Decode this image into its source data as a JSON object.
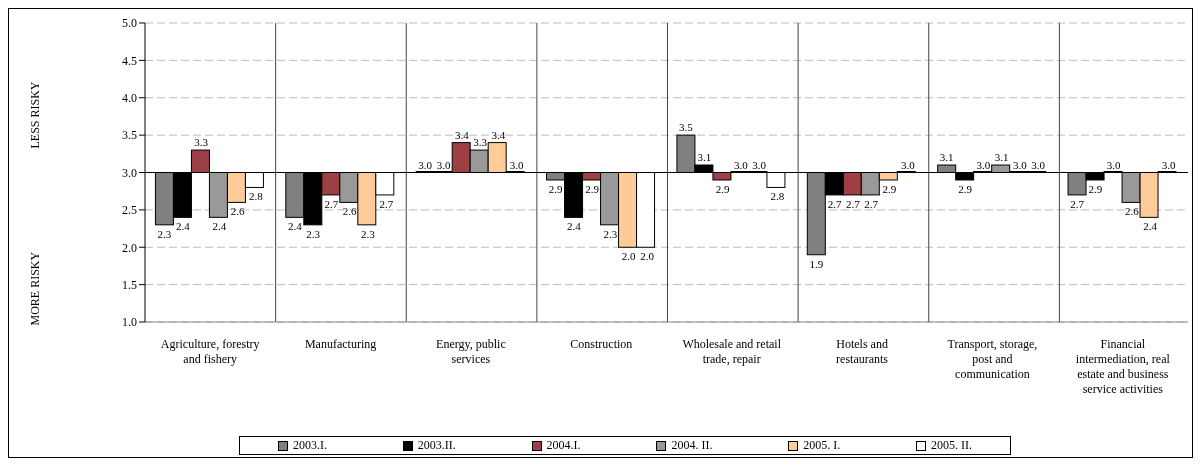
{
  "chart_data": {
    "type": "bar",
    "categories": [
      "Agriculture, forestry and fishery",
      "Manufacturing",
      "Energy, public services",
      "Construction",
      "Wholesale and retail trade, repair",
      "Hotels and restaurants",
      "Transport, storage, post and communication",
      "Financial intermediation, real estate and business service activities"
    ],
    "series": [
      {
        "name": "2003.I.",
        "color": "#808080",
        "base": [
          3.0,
          3.0,
          3.0,
          3.0,
          3.0,
          3.0,
          3.0,
          3.0
        ],
        "values": [
          -0.7,
          -0.6,
          0,
          -0.1,
          0.5,
          -1.1,
          0.1,
          -0.3
        ],
        "value_labels": [
          "2.3",
          "2.4",
          "3.0",
          "2.9",
          "3.5",
          "1.9",
          "3.1",
          "2.7"
        ]
      },
      {
        "name": "2003.II.",
        "color": "#000000",
        "base": [
          3.0,
          3.0,
          3.0,
          3.0,
          3.0,
          3.0,
          3.0,
          3.0
        ],
        "values": [
          -0.6,
          -0.7,
          0,
          -0.6,
          0.1,
          -0.3,
          -0.1,
          -0.1
        ],
        "value_labels": [
          "2.4",
          "2.3",
          "3.0",
          "2.4",
          "3.1",
          "2.7",
          "2.9",
          "2.9"
        ]
      },
      {
        "name": "2004.I.",
        "color": "#9e3f45",
        "base": [
          3.0,
          3.0,
          3.0,
          3.0,
          3.0,
          3.0,
          3.0,
          3.0
        ],
        "values": [
          0.3,
          -0.3,
          0.4,
          -0.1,
          -0.1,
          -0.3,
          0,
          0
        ],
        "value_labels": [
          "3.3",
          "2.7",
          "3.4",
          "2.9",
          "2.9",
          "2.7",
          "3.0",
          "3.0"
        ]
      },
      {
        "name": "2004. II.",
        "color": "#999999",
        "base": [
          3.0,
          3.0,
          3.0,
          3.0,
          3.0,
          3.0,
          3.0,
          3.0
        ],
        "values": [
          -0.6,
          -0.4,
          0.3,
          -0.7,
          0,
          -0.3,
          0.1,
          -0.4
        ],
        "value_labels": [
          "2.4",
          "2.6",
          "3.3",
          "2.3",
          "3.0",
          "2.7",
          "3.1",
          "2.6"
        ]
      },
      {
        "name": "2005. I.",
        "color": "#ffcc99",
        "base": [
          3.0,
          3.0,
          3.0,
          3.0,
          3.0,
          3.0,
          3.0,
          3.0
        ],
        "values": [
          -0.4,
          -0.7,
          0.4,
          -1.0,
          0,
          -0.1,
          0,
          -0.6
        ],
        "value_labels": [
          "2.6",
          "2.3",
          "3.4",
          "2.0",
          "3.0",
          "2.9",
          "3.0",
          "2.4"
        ]
      },
      {
        "name": "2005. II.",
        "color": "#ffffff",
        "base": [
          3.0,
          3.0,
          3.0,
          3.0,
          3.0,
          3.0,
          3.0,
          3.0
        ],
        "values": [
          -0.2,
          -0.3,
          0,
          -1.0,
          -0.2,
          0,
          0,
          0
        ],
        "value_labels": [
          "2.8",
          "2.7",
          "3.0",
          "2.0",
          "2.8",
          "3.0",
          "3.0",
          "3.0"
        ]
      }
    ],
    "ylim": [
      1.0,
      5.0
    ],
    "yticks": [
      {
        "value": 1,
        "label": "1.0"
      },
      {
        "value": 1.5,
        "label": "1.5"
      },
      {
        "value": 2,
        "label": "2.0"
      },
      {
        "value": 2.5,
        "label": "2.5"
      },
      {
        "value": 3,
        "label": "3.0"
      },
      {
        "value": 3.5,
        "label": "3.5"
      },
      {
        "value": 4,
        "label": "4.0"
      },
      {
        "value": 4.5,
        "label": "4.5"
      },
      {
        "value": 5,
        "label": "5.0"
      }
    ],
    "ref_lines": [
      {
        "axis": "y",
        "value": 3.0,
        "color": "#000000"
      }
    ],
    "annotations": [
      "LESS RISKY",
      "MORE RISKY"
    ],
    "grid": true,
    "legend": "bottom"
  }
}
